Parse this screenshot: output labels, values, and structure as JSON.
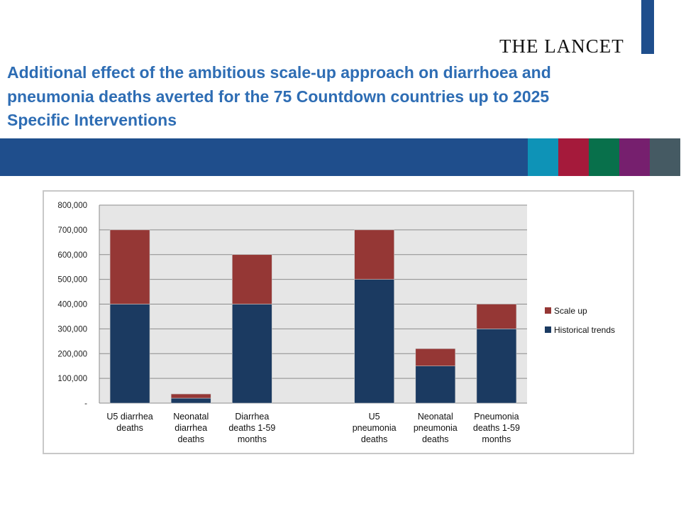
{
  "header": {
    "brand": "THE LANCET",
    "title_lines": [
      "Additional effect of the ambitious scale-up approach on diarrhoea and",
      "pneumonia deaths averted for the 75 Countdown countries up to 2025",
      "Specific Interventions"
    ]
  },
  "colors": {
    "brand_blue": "#1f4e8c",
    "title_blue": "#2e6db4",
    "band_swatches": [
      "#0e93b7",
      "#a51a3b",
      "#08704b",
      "#761f6e",
      "#455a63"
    ],
    "historical": "#1b3a61",
    "scale_up": "#953735",
    "plot_bg": "#e6e6e6"
  },
  "chart_data": {
    "type": "bar",
    "stacked": true,
    "categories": [
      [
        "U5 diarrhea",
        "deaths"
      ],
      [
        "Neonatal",
        "diarrhea",
        "deaths"
      ],
      [
        "Diarrhea",
        "deaths 1-59",
        "months"
      ],
      [],
      [
        "U5",
        "pneumonia",
        "deaths"
      ],
      [
        "Neonatal",
        "pneumonia",
        "deaths"
      ],
      [
        "Pneumonia",
        "deaths 1-59",
        "months"
      ]
    ],
    "series": [
      {
        "name": "Historical trends",
        "color": "#1b3a61",
        "values": [
          400000,
          20000,
          400000,
          null,
          500000,
          150000,
          300000
        ]
      },
      {
        "name": "Scale up",
        "color": "#953735",
        "values": [
          300000,
          17000,
          200000,
          null,
          200000,
          70000,
          100000
        ]
      }
    ],
    "ylim": [
      0,
      800000
    ],
    "yticks": [
      0,
      100000,
      200000,
      300000,
      400000,
      500000,
      600000,
      700000,
      800000
    ],
    "ytick_labels": [
      "-",
      "100,000",
      "200,000",
      "300,000",
      "400,000",
      "500,000",
      "600,000",
      "700,000",
      "800,000"
    ],
    "grid": true,
    "legend_position": "right"
  }
}
